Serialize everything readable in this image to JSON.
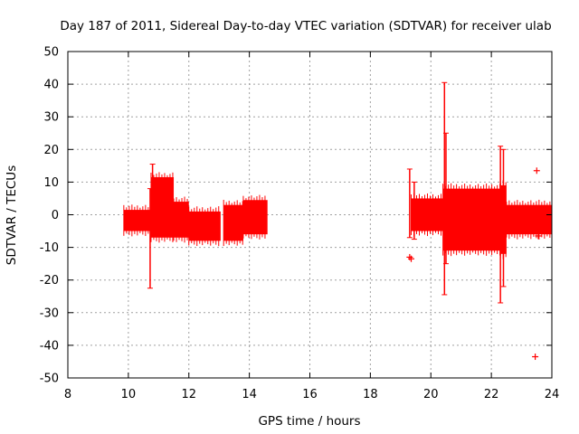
{
  "chart_data": {
    "type": "scatter",
    "title": "Day 187 of 2011, Sidereal Day-to-day VTEC variation (SDTVAR) for receiver ulab",
    "xlabel": "GPS time / hours",
    "ylabel": "SDTVAR / TECUs",
    "xlim": [
      8,
      24
    ],
    "ylim": [
      -50,
      50
    ],
    "xticks": [
      "8",
      "10",
      "12",
      "14",
      "16",
      "18",
      "20",
      "22",
      "24"
    ],
    "yticks": [
      "50",
      "40",
      "30",
      "20",
      "10",
      "0",
      "-10",
      "-20",
      "-30",
      "-40",
      "-50"
    ],
    "grid": true,
    "legend": "none",
    "series_color": "#ff0000",
    "bands": [
      {
        "x": [
          9.85,
          10.75
        ],
        "low": -5.0,
        "high": 1.5
      },
      {
        "x": [
          10.75,
          11.5
        ],
        "low": -7.0,
        "high": 11.5
      },
      {
        "x": [
          11.5,
          12.0
        ],
        "low": -7.0,
        "high": 4.0
      },
      {
        "x": [
          12.0,
          13.05
        ],
        "low": -8.0,
        "high": 1.0
      },
      {
        "x": [
          13.15,
          13.8
        ],
        "low": -8.0,
        "high": 3.0
      },
      {
        "x": [
          13.8,
          14.6
        ],
        "low": -6.0,
        "high": 4.5
      },
      {
        "x": [
          19.35,
          20.4
        ],
        "low": -5.0,
        "high": 5.0
      },
      {
        "x": [
          20.4,
          22.3
        ],
        "low": -11.0,
        "high": 8.0
      },
      {
        "x": [
          22.3,
          22.5
        ],
        "low": -12.0,
        "high": 9.0
      },
      {
        "x": [
          22.5,
          24.0
        ],
        "low": -6.0,
        "high": 3.0
      }
    ],
    "spikes": [
      {
        "x": 10.72,
        "low": -22.5,
        "high": 8.0
      },
      {
        "x": 10.8,
        "low": -5.0,
        "high": 15.5
      },
      {
        "x": 19.3,
        "low": -7.0,
        "high": 14.0
      },
      {
        "x": 19.45,
        "low": -7.5,
        "high": 10.0
      },
      {
        "x": 20.45,
        "low": -24.5,
        "high": 40.5
      },
      {
        "x": 20.5,
        "low": -15.0,
        "high": 25.0
      },
      {
        "x": 22.3,
        "low": -27.0,
        "high": 21.0
      },
      {
        "x": 22.4,
        "low": -22.0,
        "high": 20.0
      }
    ],
    "points": [
      {
        "x": 19.3,
        "y": -13.0
      },
      {
        "x": 19.35,
        "y": -13.5
      },
      {
        "x": 23.5,
        "y": 13.5
      },
      {
        "x": 23.45,
        "y": -43.5
      },
      {
        "x": 23.55,
        "y": -6.5
      }
    ]
  }
}
